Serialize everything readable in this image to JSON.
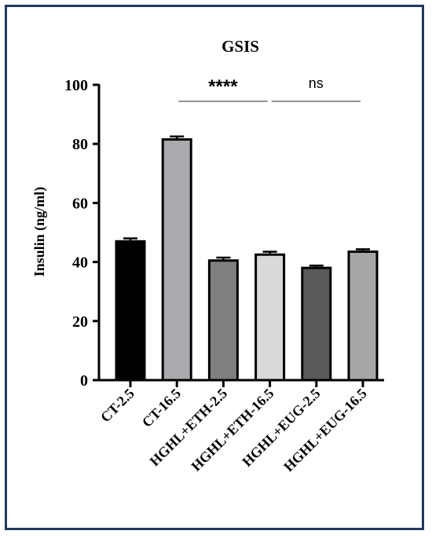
{
  "chart_data": {
    "type": "bar",
    "title": "GSIS",
    "xlabel": "",
    "ylabel": "Insulin (ng/ml)",
    "ylim": [
      0,
      100
    ],
    "yticks": [
      0,
      20,
      40,
      60,
      80,
      100
    ],
    "categories": [
      "CT-2.5",
      "CT-16.5",
      "HGHL+ETH-2.5",
      "HGHL+ETH-16.5",
      "HGHL+EUG-2.5",
      "HGHL+EUG-16.5"
    ],
    "values": [
      47,
      81.5,
      40.5,
      42.5,
      38,
      43.5
    ],
    "errors": [
      1,
      1,
      1,
      1,
      0.8,
      0.8
    ],
    "colors": [
      "#000000",
      "#a9a9ae",
      "#7f7f7f",
      "#d9d9d9",
      "#595959",
      "#a6a6a6"
    ],
    "grid": false,
    "annotations": [
      {
        "text": "****",
        "from": 1,
        "to": 3
      },
      {
        "text": "ns",
        "from": 3,
        "to": 5
      }
    ]
  }
}
